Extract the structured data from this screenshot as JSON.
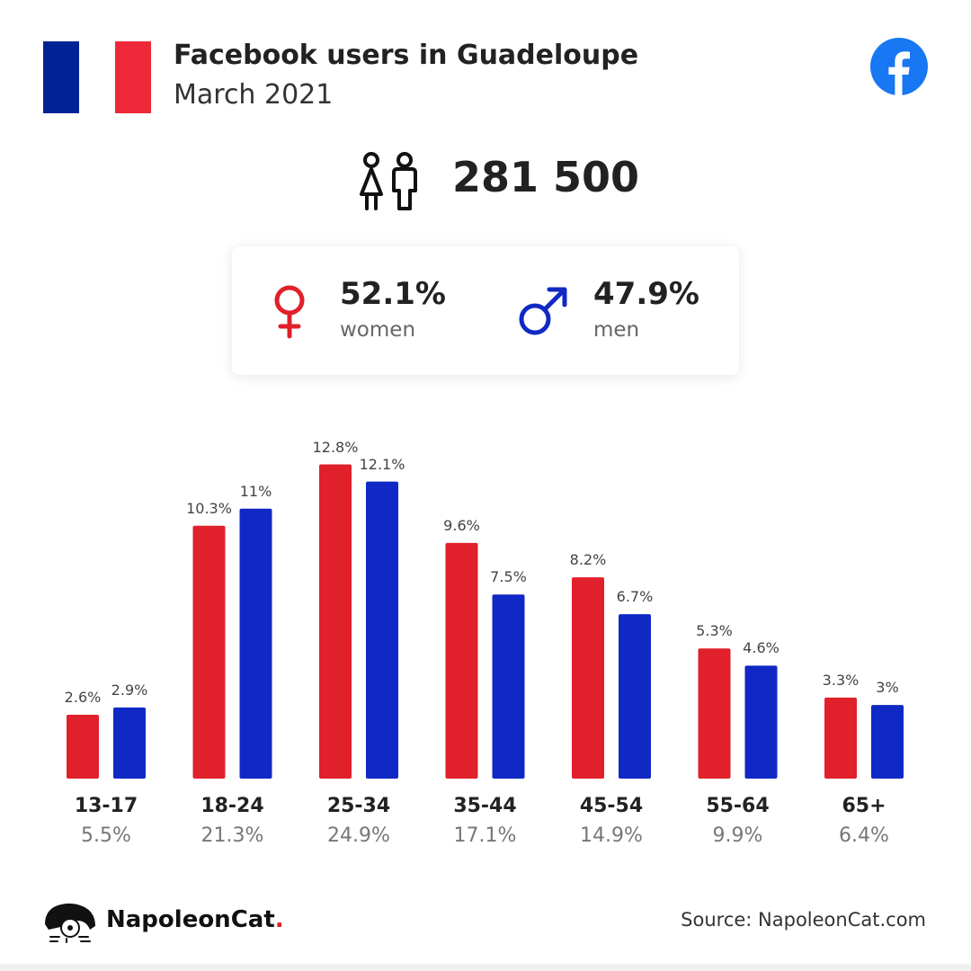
{
  "header": {
    "title": "Facebook users in Guadeloupe",
    "subtitle": "March 2021",
    "flag_colors": [
      "#002395",
      "#ffffff",
      "#ED2939"
    ],
    "flag_icon": "france-flag-icon",
    "platform_icon": "facebook-icon"
  },
  "total": {
    "value": "281 500",
    "icon": "people-icon"
  },
  "gender": {
    "women": {
      "pct": "52.1%",
      "label": "women",
      "icon": "female-symbol-icon",
      "color": "#e0202a"
    },
    "men": {
      "pct": "47.9%",
      "label": "men",
      "icon": "male-symbol-icon",
      "color": "#1029c4"
    }
  },
  "chart_data": {
    "type": "bar",
    "categories": [
      "13-17",
      "18-24",
      "25-34",
      "35-44",
      "45-54",
      "55-64",
      "65+"
    ],
    "category_share": [
      "5.5%",
      "21.3%",
      "24.9%",
      "17.1%",
      "14.9%",
      "9.9%",
      "6.4%"
    ],
    "series": [
      {
        "values": [
          2.6,
          10.3,
          12.8,
          9.6,
          8.2,
          5.3,
          3.3
        ],
        "labels": [
          "2.6%",
          "10.3%",
          "12.8%",
          "9.6%",
          "8.2%",
          "5.3%",
          "3.3%"
        ],
        "color": "#e0202a"
      },
      {
        "values": [
          2.9,
          11,
          12.1,
          7.5,
          6.7,
          4.6,
          3
        ],
        "labels": [
          "2.9%",
          "11%",
          "12.1%",
          "7.5%",
          "6.7%",
          "4.6%",
          "3%"
        ],
        "color": "#1029c4"
      }
    ],
    "grid": false,
    "legend": "none"
  },
  "footer": {
    "brand_main": "NapoleonCat",
    "brand_dot": ".",
    "source": "Source: NapoleonCat.com",
    "brand_icon": "napoleoncat-logo-icon"
  }
}
